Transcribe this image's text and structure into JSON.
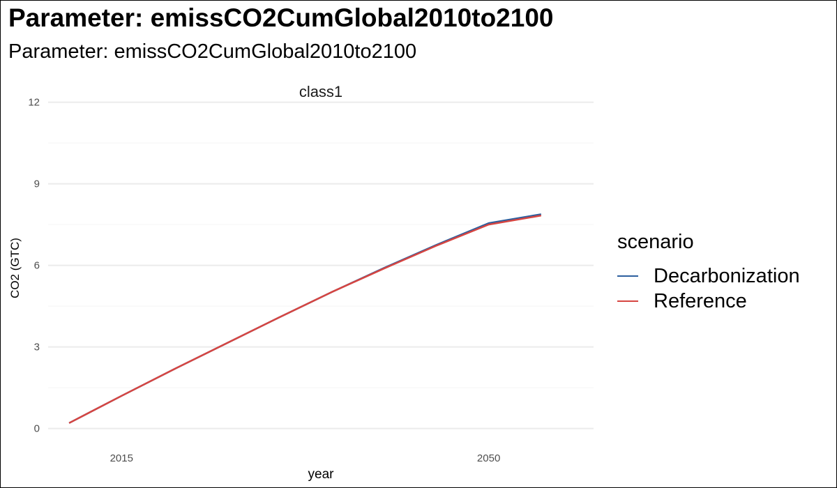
{
  "header": {
    "title": "Parameter: emissCO2CumGlobal2010to2100",
    "subtitle": "Parameter: emissCO2CumGlobal2010to2100"
  },
  "legend": {
    "title": "scenario",
    "items": [
      {
        "label": "Decarbonization",
        "color": "#2c5f9e"
      },
      {
        "label": "Reference",
        "color": "#d64541"
      }
    ]
  },
  "chart_data": {
    "type": "line",
    "facet": "class1",
    "xlabel": "year",
    "ylabel": "CO2 (GTC)",
    "xlim": [
      2008,
      2060
    ],
    "ylim": [
      -0.6,
      12.4
    ],
    "xticks": [
      2015,
      2050
    ],
    "yticks": [
      0,
      3,
      6,
      9,
      12
    ],
    "grid": true,
    "legend_position": "right",
    "series": [
      {
        "name": "Decarbonization",
        "color": "#2c5f9e",
        "x": [
          2010,
          2015,
          2020,
          2025,
          2030,
          2035,
          2040,
          2045,
          2050,
          2055
        ],
        "y": [
          0.2,
          1.2,
          2.18,
          3.13,
          4.08,
          5.01,
          5.9,
          6.75,
          7.55,
          7.88
        ]
      },
      {
        "name": "Reference",
        "color": "#d64541",
        "x": [
          2010,
          2015,
          2020,
          2025,
          2030,
          2035,
          2040,
          2045,
          2050,
          2055
        ],
        "y": [
          0.2,
          1.2,
          2.18,
          3.13,
          4.08,
          5.01,
          5.88,
          6.72,
          7.5,
          7.83
        ]
      }
    ]
  }
}
